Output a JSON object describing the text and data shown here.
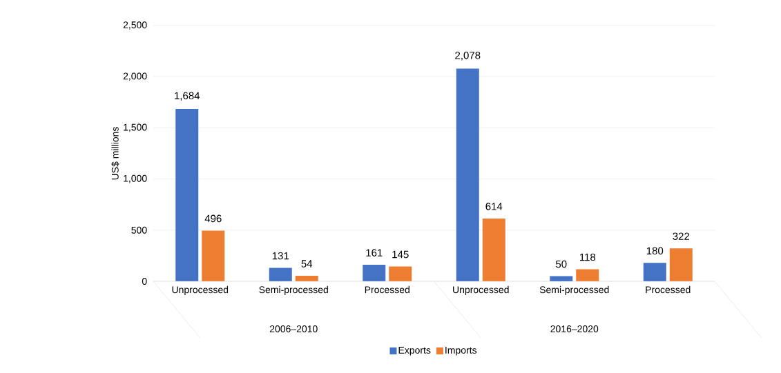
{
  "chart_data": {
    "type": "bar",
    "ylabel": "US$ millions",
    "categories": [
      "Unprocessed",
      "Semi-processed",
      "Processed",
      "Unprocessed",
      "Semi-processed",
      "Processed"
    ],
    "annotations": [
      "2006–2010",
      "2016–2020"
    ],
    "series": [
      {
        "name": "Exports",
        "color": "#4472c4",
        "values": [
          1684,
          131,
          161,
          2078,
          50,
          180
        ],
        "value_labels": [
          "1,684",
          "131",
          "161",
          "2,078",
          "50",
          "180"
        ]
      },
      {
        "name": "Imports",
        "color": "#ed7d31",
        "values": [
          496,
          54,
          145,
          614,
          118,
          322
        ],
        "value_labels": [
          "496",
          "54",
          "145",
          "614",
          "118",
          "322"
        ]
      }
    ],
    "ylim": [
      0,
      2500
    ],
    "yticks": [
      0,
      {
        "value": 500,
        "label": "500"
      },
      {
        "value": 1000,
        "label": "1,000"
      },
      {
        "value": 1500,
        "label": "1,500"
      },
      {
        "value": 2000,
        "label": "2,000"
      },
      {
        "value": 2500,
        "label": "2,500"
      }
    ],
    "grid": "y",
    "legend": "bottom"
  }
}
